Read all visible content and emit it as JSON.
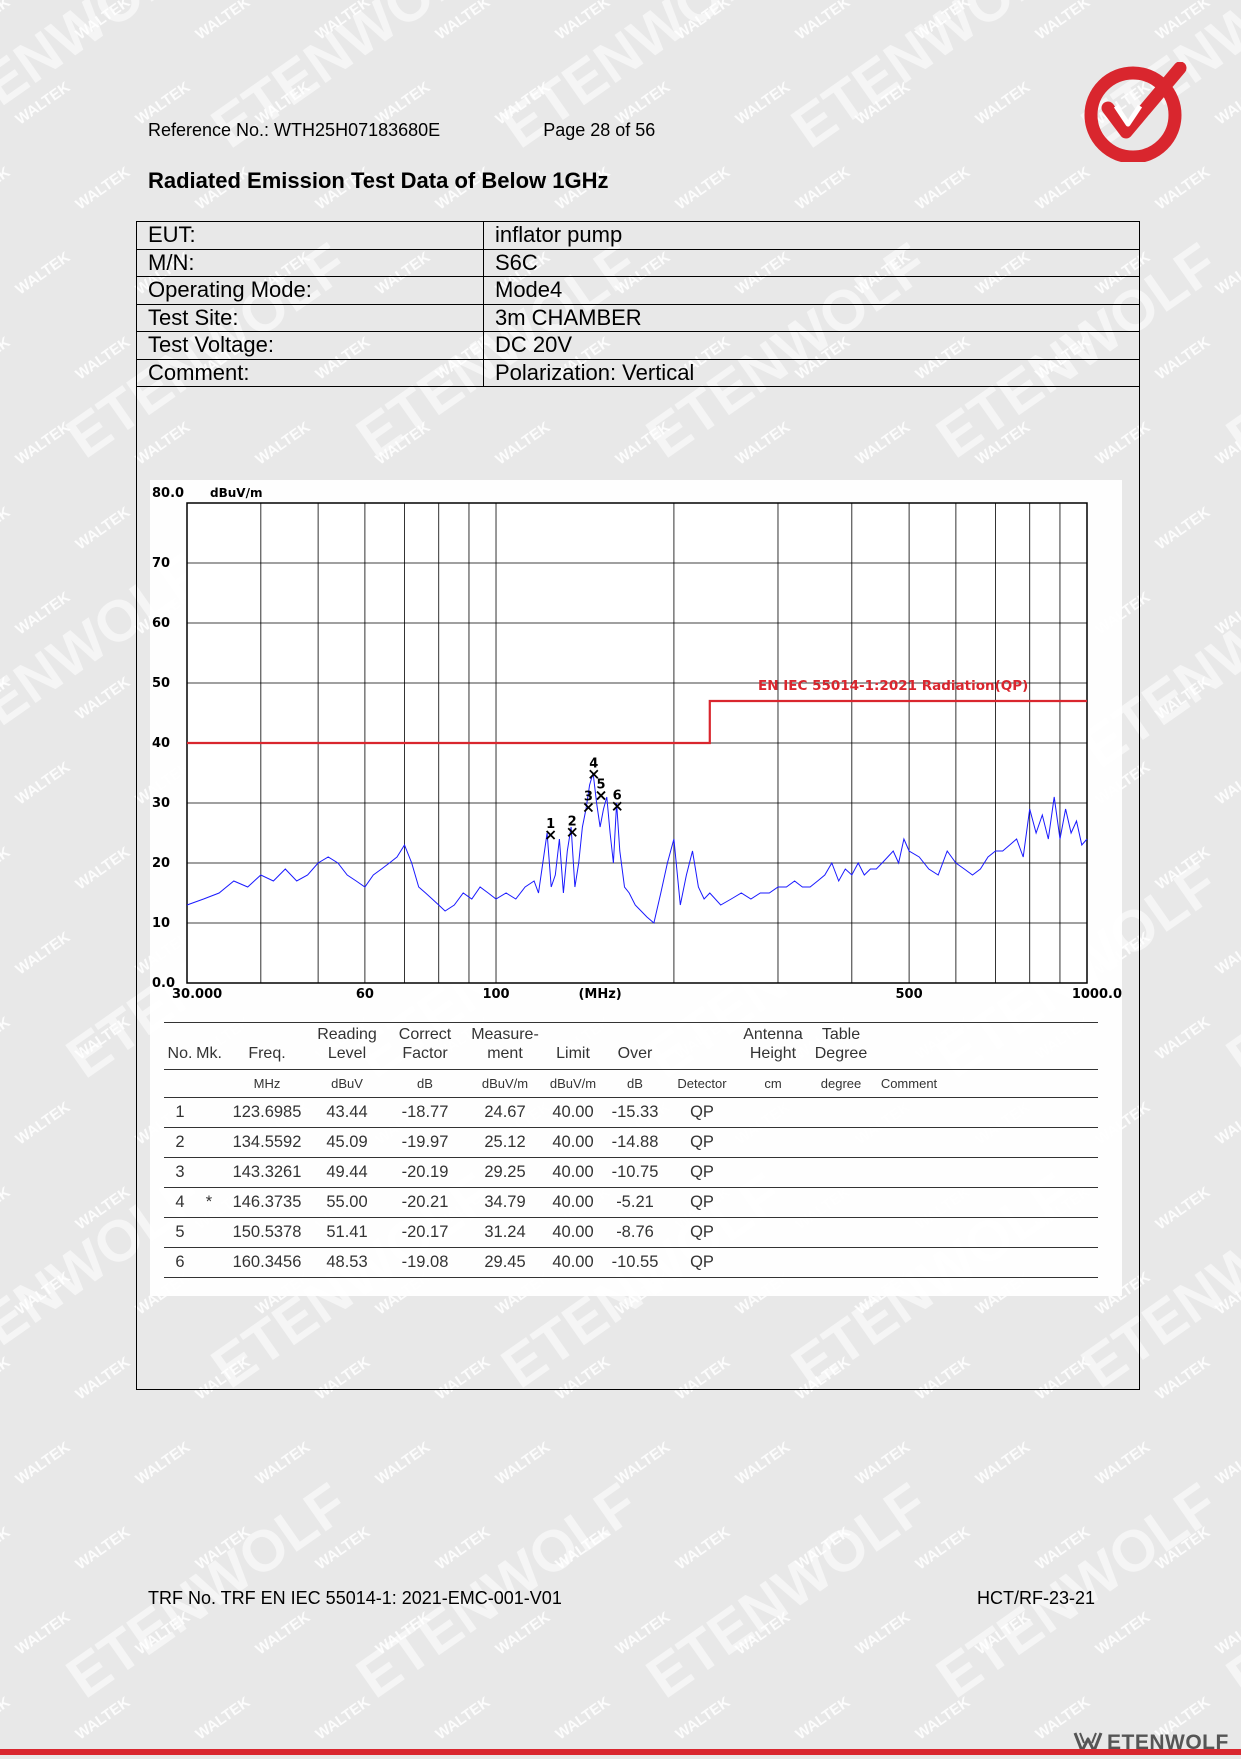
{
  "watermark": {
    "small": "WALTEK",
    "large": "ETENWOLF"
  },
  "header": {
    "reference": "Reference No.: WTH25H07183680E",
    "page": "Page 28 of 56"
  },
  "title": "Radiated Emission Test Data of Below 1GHz",
  "info_rows": [
    {
      "label": "EUT:",
      "value": "inflator pump"
    },
    {
      "label": "M/N:",
      "value": "S6C"
    },
    {
      "label": "Operating Mode:",
      "value": "Mode4"
    },
    {
      "label": "Test Site:",
      "value": "3m CHAMBER"
    },
    {
      "label": "Test Voltage:",
      "value": "DC 20V"
    },
    {
      "label": "Comment:",
      "value": "Polarization: Vertical"
    }
  ],
  "chart_data": {
    "type": "line",
    "ylabel": "dBuV/m",
    "xlabel": "(MHz)",
    "x_scale": "log",
    "xlim": [
      30,
      1000
    ],
    "ylim": [
      0,
      80
    ],
    "x_tick_labels": [
      "30.000",
      "60",
      "100",
      "(MHz)",
      "500",
      "1000.0"
    ],
    "y_tick_labels": [
      "80.0",
      "70",
      "60",
      "50",
      "40",
      "30",
      "20",
      "10",
      "0.0"
    ],
    "grid": true,
    "limit_line": {
      "name": "EN IEC 55014-1:2021 Radiation(QP)",
      "segments": [
        {
          "x": [
            30,
            230
          ],
          "y": 40
        },
        {
          "x": [
            230,
            1000
          ],
          "y": 47
        }
      ]
    },
    "markers": [
      {
        "id": "1",
        "x": 123.6985,
        "y": 24.67
      },
      {
        "id": "2",
        "x": 134.5592,
        "y": 25.12
      },
      {
        "id": "3",
        "x": 143.3261,
        "y": 29.25
      },
      {
        "id": "4",
        "x": 146.3735,
        "y": 34.79
      },
      {
        "id": "5",
        "x": 150.5378,
        "y": 31.24
      },
      {
        "id": "6",
        "x": 160.3456,
        "y": 29.45
      }
    ],
    "trace": {
      "x": [
        30,
        32,
        34,
        36,
        38,
        40,
        42,
        44,
        46,
        48,
        50,
        52,
        54,
        56,
        58,
        60,
        62,
        64,
        66,
        68,
        70,
        72,
        74,
        76,
        78,
        80,
        82,
        85,
        88,
        91,
        94,
        97,
        100,
        104,
        108,
        112,
        116,
        118,
        120,
        122,
        124,
        126,
        128,
        130,
        132,
        134,
        136,
        138,
        140,
        142,
        144,
        146,
        148,
        150,
        152,
        154,
        156,
        158,
        160,
        162,
        165,
        168,
        172,
        176,
        180,
        185,
        190,
        195,
        200,
        205,
        210,
        215,
        220,
        225,
        230,
        240,
        250,
        260,
        270,
        280,
        290,
        300,
        310,
        320,
        330,
        340,
        350,
        360,
        370,
        380,
        390,
        400,
        410,
        420,
        430,
        440,
        450,
        460,
        470,
        480,
        490,
        500,
        520,
        540,
        560,
        580,
        600,
        620,
        640,
        660,
        680,
        700,
        720,
        740,
        760,
        780,
        800,
        820,
        840,
        860,
        880,
        900,
        920,
        940,
        960,
        980,
        1000
      ],
      "y": [
        13,
        14,
        15,
        17,
        16,
        18,
        17,
        19,
        17,
        18,
        20,
        21,
        20,
        18,
        17,
        16,
        18,
        19,
        20,
        21,
        23,
        20,
        16,
        15,
        14,
        13,
        12,
        13,
        15,
        14,
        16,
        15,
        14,
        15,
        14,
        16,
        17,
        15,
        20,
        25,
        16,
        18,
        24,
        15,
        22,
        26,
        16,
        20,
        26,
        29,
        33,
        35,
        30,
        26,
        29,
        31,
        25,
        20,
        30,
        22,
        16,
        15,
        13,
        12,
        11,
        10,
        15,
        20,
        24,
        13,
        18,
        22,
        16,
        14,
        15,
        13,
        14,
        15,
        14,
        15,
        15,
        16,
        16,
        17,
        16,
        16,
        17,
        18,
        20,
        17,
        19,
        18,
        20,
        18,
        19,
        19,
        20,
        21,
        22,
        20,
        24,
        22,
        21,
        19,
        18,
        22,
        20,
        19,
        18,
        19,
        21,
        22,
        22,
        23,
        24,
        21,
        29,
        25,
        28,
        24,
        31,
        24,
        29,
        25,
        27,
        23,
        24
      ]
    }
  },
  "results": {
    "headers": [
      "No.",
      "Mk.",
      "Freq.",
      "Reading Level",
      "Correct Factor",
      "Measure-ment",
      "Limit",
      "Over",
      "",
      "Antenna Height",
      "Table Degree",
      ""
    ],
    "header_line1": [
      "",
      "",
      "",
      "Reading",
      "Correct",
      "Measure-",
      "",
      "",
      "",
      "Antenna",
      "Table",
      ""
    ],
    "header_line2": [
      "No.",
      "Mk.",
      "Freq.",
      "Level",
      "Factor",
      "ment",
      "Limit",
      "Over",
      "",
      "Height",
      "Degree",
      ""
    ],
    "units": [
      "",
      "",
      "MHz",
      "dBuV",
      "dB",
      "dBuV/m",
      "dBuV/m",
      "dB",
      "Detector",
      "cm",
      "degree",
      "Comment"
    ],
    "rows": [
      [
        "1",
        "",
        "123.6985",
        "43.44",
        "-18.77",
        "24.67",
        "40.00",
        "-15.33",
        "QP",
        "",
        "",
        ""
      ],
      [
        "2",
        "",
        "134.5592",
        "45.09",
        "-19.97",
        "25.12",
        "40.00",
        "-14.88",
        "QP",
        "",
        "",
        ""
      ],
      [
        "3",
        "",
        "143.3261",
        "49.44",
        "-20.19",
        "29.25",
        "40.00",
        "-10.75",
        "QP",
        "",
        "",
        ""
      ],
      [
        "4",
        "*",
        "146.3735",
        "55.00",
        "-20.21",
        "34.79",
        "40.00",
        "-5.21",
        "QP",
        "",
        "",
        ""
      ],
      [
        "5",
        "",
        "150.5378",
        "51.41",
        "-20.17",
        "31.24",
        "40.00",
        "-8.76",
        "QP",
        "",
        "",
        ""
      ],
      [
        "6",
        "",
        "160.3456",
        "48.53",
        "-19.08",
        "29.45",
        "40.00",
        "-10.55",
        "QP",
        "",
        "",
        ""
      ]
    ]
  },
  "footer": {
    "trf": "TRF No. TRF EN IEC 55014-1: 2021-EMC-001-V01",
    "code": "HCT/RF-23-21",
    "brand": "ETENWOLF"
  },
  "colors": {
    "limit": "#d9262e",
    "trace": "#1a1aff",
    "brand_red": "#d9262e",
    "brand_gray": "#555555"
  }
}
